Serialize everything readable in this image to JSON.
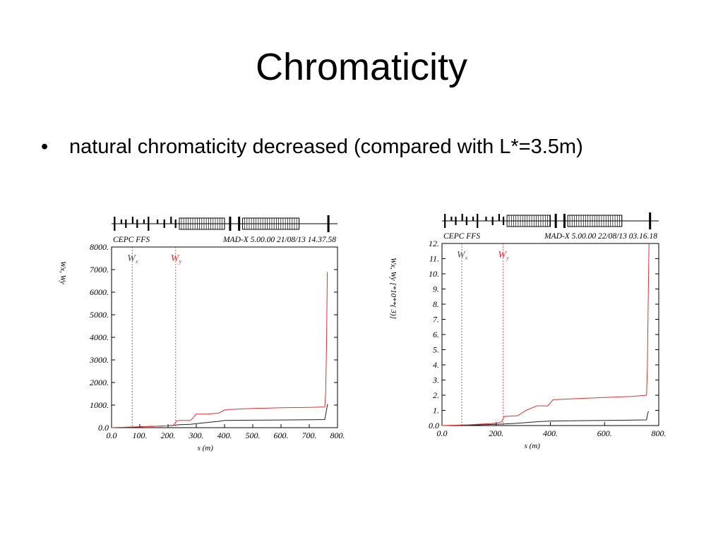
{
  "slide": {
    "title": "Chromaticity",
    "bullet_symbol": "•",
    "bullet_text": "natural chromaticity decreased (compared with L*=3.5m)"
  },
  "chart_data": [
    {
      "type": "line",
      "header_left": "CEPC FFS",
      "header_right": "MAD-X 5.00.00  21/08/13 14.37.58",
      "xlabel": "s (m)",
      "ylabel": "Wx, Wy",
      "ylabel_scale": "",
      "xlim": [
        0,
        800
      ],
      "ylim": [
        0,
        8000
      ],
      "x_ticks": [
        0,
        100,
        200,
        300,
        400,
        500,
        600,
        700,
        800
      ],
      "x_tick_labels": [
        "0.0",
        "100.",
        "200.",
        "300.",
        "400.",
        "500.",
        "600.",
        "700.",
        "800."
      ],
      "y_ticks": [
        0,
        1000,
        2000,
        3000,
        4000,
        5000,
        6000,
        7000,
        8000
      ],
      "y_tick_labels": [
        "0.0",
        "1000.",
        "2000.",
        "3000.",
        "4000.",
        "5000.",
        "6000.",
        "7000.",
        "8000."
      ],
      "markers": [
        {
          "name": "Wx",
          "sub": "x",
          "x": 73,
          "color": "#555555"
        },
        {
          "name": "Wy",
          "sub": "y",
          "x": 227,
          "color": "#e03030"
        }
      ],
      "series": [
        {
          "name": "Wx",
          "color": "#222222",
          "x": [
            0,
            50,
            100,
            150,
            200,
            220,
            240,
            280,
            300,
            340,
            380,
            400,
            500,
            600,
            700,
            755,
            760,
            765
          ],
          "y": [
            0,
            20,
            40,
            60,
            80,
            110,
            130,
            150,
            180,
            230,
            280,
            320,
            330,
            340,
            350,
            360,
            700,
            1050
          ]
        },
        {
          "name": "Wy",
          "color": "#e03030",
          "x": [
            0,
            50,
            100,
            150,
            200,
            220,
            230,
            240,
            280,
            300,
            340,
            380,
            400,
            410,
            500,
            600,
            700,
            755,
            758,
            761,
            764
          ],
          "y": [
            0,
            20,
            40,
            60,
            80,
            100,
            300,
            320,
            320,
            600,
            600,
            650,
            780,
            800,
            850,
            880,
            900,
            920,
            1500,
            3500,
            6900
          ]
        }
      ],
      "lattice_strip": true
    },
    {
      "type": "line",
      "header_left": "CEPC FFS",
      "header_right": "MAD-X 5.00.00  22/08/13 03.16.18",
      "xlabel": "s (m)",
      "ylabel": "Wx, Wy",
      "ylabel_scale": "[*10**( 3)]",
      "xlim": [
        0,
        800
      ],
      "ylim": [
        0,
        12
      ],
      "x_ticks": [
        0,
        200,
        400,
        600,
        800
      ],
      "x_tick_labels": [
        "0.0",
        "200.",
        "400.",
        "600.",
        "800."
      ],
      "y_ticks": [
        0,
        1,
        2,
        3,
        4,
        5,
        6,
        7,
        8,
        9,
        10,
        11,
        12
      ],
      "y_tick_labels": [
        "0.0",
        "1.",
        "2.",
        "3.",
        "4.",
        "5.",
        "6.",
        "7.",
        "8.",
        "9.",
        "10.",
        "11.",
        "12."
      ],
      "markers": [
        {
          "name": "Wx",
          "sub": "x",
          "x": 73,
          "color": "#555555"
        },
        {
          "name": "Wy",
          "sub": "y",
          "x": 225,
          "color": "#e03030"
        }
      ],
      "series": [
        {
          "name": "Wx",
          "color": "#222222",
          "x": [
            0,
            100,
            200,
            250,
            300,
            350,
            400,
            500,
            600,
            700,
            755,
            758,
            762
          ],
          "y": [
            0,
            0.03,
            0.08,
            0.12,
            0.18,
            0.25,
            0.3,
            0.32,
            0.34,
            0.36,
            0.37,
            0.7,
            0.95
          ]
        },
        {
          "name": "Wy",
          "color": "#e03030",
          "x": [
            0,
            100,
            200,
            220,
            230,
            280,
            310,
            350,
            390,
            410,
            500,
            600,
            700,
            755,
            758,
            761,
            764
          ],
          "y": [
            0,
            0.05,
            0.15,
            0.25,
            0.6,
            0.65,
            1.0,
            1.3,
            1.3,
            1.7,
            1.78,
            1.85,
            1.92,
            2.0,
            3.8,
            8.0,
            12
          ]
        }
      ],
      "lattice_strip": true
    }
  ]
}
